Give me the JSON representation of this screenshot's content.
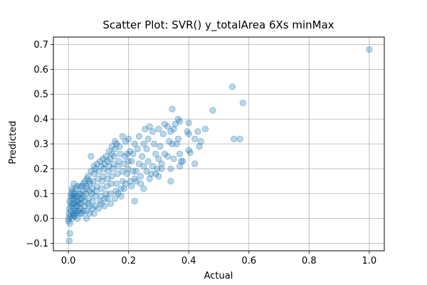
{
  "chart_data": {
    "type": "scatter",
    "title": "Scatter Plot: SVR() y_totalArea 6Xs minMax",
    "xlabel": "Actual",
    "ylabel": "Predicted",
    "xlim": [
      -0.05,
      1.05
    ],
    "ylim": [
      -0.13,
      0.73
    ],
    "xticks": [
      0.0,
      0.2,
      0.4,
      0.6,
      0.8,
      1.0
    ],
    "xtick_labels": [
      "0.0",
      "0.2",
      "0.4",
      "0.6",
      "0.8",
      "1.0"
    ],
    "yticks": [
      -0.1,
      0.0,
      0.1,
      0.2,
      0.3,
      0.4,
      0.5,
      0.6,
      0.7
    ],
    "yticks_labels": [
      "−0.1",
      "0.0",
      "0.1",
      "0.2",
      "0.3",
      "0.4",
      "0.5",
      "0.6",
      "0.7"
    ],
    "grid": true,
    "marker_color": "#1f77b4",
    "marker_alpha": 0.3,
    "points": [
      [
        1.0,
        0.68
      ],
      [
        0.545,
        0.53
      ],
      [
        0.58,
        0.465
      ],
      [
        0.57,
        0.32
      ],
      [
        0.55,
        0.32
      ],
      [
        0.48,
        0.435
      ],
      [
        0.455,
        0.36
      ],
      [
        0.44,
        0.31
      ],
      [
        0.42,
        0.32
      ],
      [
        0.43,
        0.35
      ],
      [
        0.435,
        0.29
      ],
      [
        0.4,
        0.385
      ],
      [
        0.395,
        0.35
      ],
      [
        0.4,
        0.34
      ],
      [
        0.42,
        0.22
      ],
      [
        0.405,
        0.265
      ],
      [
        0.4,
        0.275
      ],
      [
        0.38,
        0.23
      ],
      [
        0.375,
        0.23
      ],
      [
        0.365,
        0.4
      ],
      [
        0.37,
        0.39
      ],
      [
        0.365,
        0.32
      ],
      [
        0.37,
        0.26
      ],
      [
        0.355,
        0.38
      ],
      [
        0.36,
        0.3
      ],
      [
        0.37,
        0.21
      ],
      [
        0.345,
        0.44
      ],
      [
        0.35,
        0.36
      ],
      [
        0.34,
        0.35
      ],
      [
        0.345,
        0.3
      ],
      [
        0.35,
        0.24
      ],
      [
        0.34,
        0.2
      ],
      [
        0.33,
        0.37
      ],
      [
        0.335,
        0.31
      ],
      [
        0.33,
        0.25
      ],
      [
        0.34,
        0.15
      ],
      [
        0.32,
        0.38
      ],
      [
        0.315,
        0.34
      ],
      [
        0.32,
        0.26
      ],
      [
        0.31,
        0.22
      ],
      [
        0.3,
        0.36
      ],
      [
        0.305,
        0.29
      ],
      [
        0.3,
        0.24
      ],
      [
        0.295,
        0.2
      ],
      [
        0.28,
        0.35
      ],
      [
        0.285,
        0.3
      ],
      [
        0.29,
        0.26
      ],
      [
        0.28,
        0.21
      ],
      [
        0.275,
        0.18
      ],
      [
        0.27,
        0.37
      ],
      [
        0.265,
        0.32
      ],
      [
        0.26,
        0.28
      ],
      [
        0.265,
        0.23
      ],
      [
        0.26,
        0.19
      ],
      [
        0.255,
        0.36
      ],
      [
        0.25,
        0.3
      ],
      [
        0.245,
        0.25
      ],
      [
        0.25,
        0.21
      ],
      [
        0.24,
        0.17
      ],
      [
        0.235,
        0.33
      ],
      [
        0.23,
        0.28
      ],
      [
        0.235,
        0.22
      ],
      [
        0.225,
        0.19
      ],
      [
        0.22,
        0.16
      ],
      [
        0.22,
        0.3
      ],
      [
        0.215,
        0.26
      ],
      [
        0.21,
        0.23
      ],
      [
        0.215,
        0.19
      ],
      [
        0.205,
        0.15
      ],
      [
        0.2,
        0.32
      ],
      [
        0.205,
        0.27
      ],
      [
        0.2,
        0.23
      ],
      [
        0.198,
        0.2
      ],
      [
        0.195,
        0.18
      ],
      [
        0.19,
        0.31
      ],
      [
        0.188,
        0.25
      ],
      [
        0.185,
        0.22
      ],
      [
        0.18,
        0.19
      ],
      [
        0.18,
        0.15
      ],
      [
        0.175,
        0.12
      ],
      [
        0.17,
        0.29
      ],
      [
        0.172,
        0.26
      ],
      [
        0.168,
        0.23
      ],
      [
        0.165,
        0.21
      ],
      [
        0.163,
        0.18
      ],
      [
        0.16,
        0.14
      ],
      [
        0.158,
        0.11
      ],
      [
        0.155,
        0.28
      ],
      [
        0.152,
        0.25
      ],
      [
        0.15,
        0.22
      ],
      [
        0.148,
        0.2
      ],
      [
        0.145,
        0.17
      ],
      [
        0.142,
        0.14
      ],
      [
        0.14,
        0.1
      ],
      [
        0.138,
        0.24
      ],
      [
        0.135,
        0.21
      ],
      [
        0.132,
        0.19
      ],
      [
        0.13,
        0.16
      ],
      [
        0.128,
        0.13
      ],
      [
        0.125,
        0.1
      ],
      [
        0.122,
        0.08
      ],
      [
        0.12,
        0.22
      ],
      [
        0.118,
        0.2
      ],
      [
        0.115,
        0.17
      ],
      [
        0.112,
        0.15
      ],
      [
        0.11,
        0.12
      ],
      [
        0.108,
        0.09
      ],
      [
        0.105,
        0.07
      ],
      [
        0.1,
        0.19
      ],
      [
        0.098,
        0.16
      ],
      [
        0.095,
        0.13
      ],
      [
        0.092,
        0.11
      ],
      [
        0.09,
        0.09
      ],
      [
        0.085,
        0.18
      ],
      [
        0.082,
        0.15
      ],
      [
        0.08,
        0.12
      ],
      [
        0.078,
        0.1
      ],
      [
        0.075,
        0.25
      ],
      [
        0.072,
        0.14
      ],
      [
        0.07,
        0.11
      ],
      [
        0.068,
        0.08
      ],
      [
        0.065,
        0.06
      ],
      [
        0.062,
        0.16
      ],
      [
        0.06,
        0.13
      ],
      [
        0.058,
        0.1
      ],
      [
        0.055,
        0.07
      ],
      [
        0.052,
        0.05
      ],
      [
        0.05,
        0.14
      ],
      [
        0.048,
        0.11
      ],
      [
        0.045,
        0.08
      ],
      [
        0.042,
        0.06
      ],
      [
        0.04,
        0.04
      ],
      [
        0.038,
        0.13
      ],
      [
        0.035,
        0.1
      ],
      [
        0.032,
        0.07
      ],
      [
        0.03,
        0.05
      ],
      [
        0.028,
        0.03
      ],
      [
        0.025,
        0.12
      ],
      [
        0.022,
        0.09
      ],
      [
        0.02,
        0.06
      ],
      [
        0.018,
        0.04
      ],
      [
        0.016,
        0.02
      ],
      [
        0.014,
        0.11
      ],
      [
        0.012,
        0.08
      ],
      [
        0.01,
        0.05
      ],
      [
        0.008,
        0.03
      ],
      [
        0.006,
        0.01
      ],
      [
        0.004,
        0.07
      ],
      [
        0.003,
        0.04
      ],
      [
        0.002,
        0.02
      ],
      [
        0.001,
        0.0
      ],
      [
        0.0,
        -0.01
      ],
      [
        0.005,
        -0.02
      ],
      [
        0.005,
        -0.06
      ],
      [
        0.003,
        -0.09
      ],
      [
        0.008,
        0.09
      ],
      [
        0.015,
        0.06
      ],
      [
        0.02,
        0.01
      ],
      [
        0.025,
        0.02
      ],
      [
        0.03,
        0.09
      ],
      [
        0.035,
        0.03
      ],
      [
        0.04,
        0.08
      ],
      [
        0.045,
        0.02
      ],
      [
        0.05,
        0.09
      ],
      [
        0.06,
        0.03
      ],
      [
        0.07,
        0.05
      ],
      [
        0.085,
        0.02
      ],
      [
        0.08,
        0.07
      ],
      [
        0.09,
        0.05
      ],
      [
        0.1,
        0.04
      ],
      [
        0.11,
        0.06
      ],
      [
        0.12,
        0.05
      ],
      [
        0.13,
        0.08
      ],
      [
        0.14,
        0.06
      ],
      [
        0.155,
        0.08
      ],
      [
        0.165,
        0.1
      ],
      [
        0.175,
        0.09
      ],
      [
        0.185,
        0.12
      ],
      [
        0.19,
        0.14
      ],
      [
        0.21,
        0.13
      ],
      [
        0.225,
        0.15
      ],
      [
        0.24,
        0.14
      ],
      [
        0.22,
        0.07
      ],
      [
        0.25,
        0.12
      ],
      [
        0.27,
        0.16
      ],
      [
        0.29,
        0.18
      ],
      [
        0.31,
        0.2
      ],
      [
        0.3,
        0.17
      ],
      [
        0.16,
        0.3
      ],
      [
        0.18,
        0.33
      ],
      [
        0.195,
        0.26
      ],
      [
        0.13,
        0.23
      ],
      [
        0.145,
        0.26
      ],
      [
        0.11,
        0.21
      ],
      [
        0.09,
        0.2
      ],
      [
        0.06,
        0.12
      ],
      [
        0.07,
        0.15
      ],
      [
        0.04,
        0.1
      ],
      [
        0.03,
        0.13
      ],
      [
        0.02,
        0.1
      ],
      [
        0.012,
        0.12
      ],
      [
        0.018,
        0.14
      ],
      [
        0.028,
        0.07
      ],
      [
        0.045,
        0.13
      ],
      [
        0.055,
        0.15
      ],
      [
        0.065,
        0.17
      ],
      [
        0.075,
        0.19
      ],
      [
        0.085,
        0.21
      ],
      [
        0.095,
        0.22
      ],
      [
        0.105,
        0.23
      ],
      [
        0.115,
        0.24
      ],
      [
        0.125,
        0.25
      ],
      [
        0.135,
        0.27
      ],
      [
        0.145,
        0.29
      ],
      [
        0.155,
        0.31
      ],
      [
        0.02,
        0.08
      ],
      [
        0.015,
        0.09
      ],
      [
        0.01,
        0.1
      ],
      [
        0.025,
        0.05
      ],
      [
        0.035,
        0.06
      ],
      [
        0.008,
        0.06
      ],
      [
        0.012,
        0.0
      ],
      [
        0.018,
        0.01
      ],
      [
        0.022,
        0.03
      ],
      [
        0.03,
        0.0
      ],
      [
        0.04,
        0.02
      ],
      [
        0.05,
        0.03
      ],
      [
        0.06,
        0.0
      ],
      [
        0.07,
        0.02
      ],
      [
        0.08,
        0.04
      ]
    ]
  }
}
